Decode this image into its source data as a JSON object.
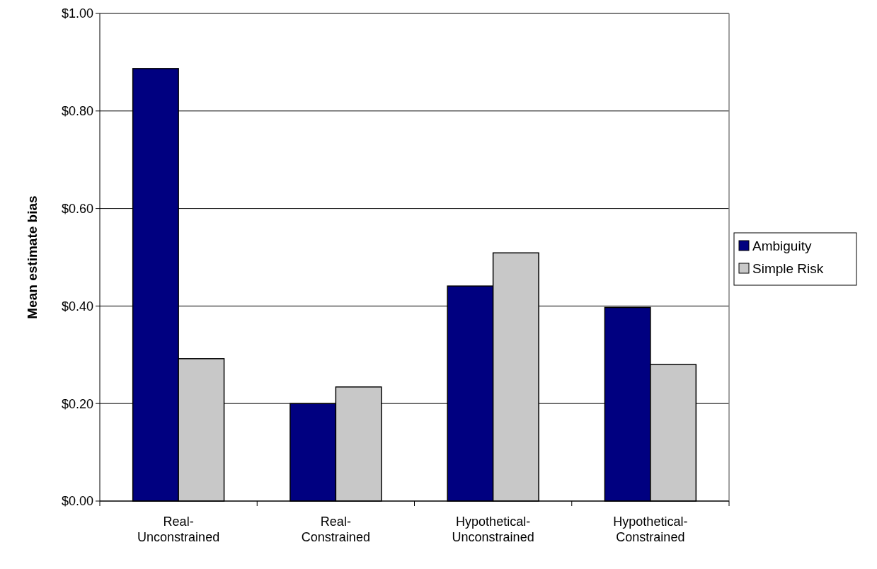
{
  "chart_data": {
    "type": "bar",
    "ylabel": "Mean estimate bias",
    "categories": [
      "Real-\nUnconstrained",
      "Real-\nConstrained",
      "Hypothetical-\nUnconstrained",
      "Hypothetical-\nConstrained"
    ],
    "series": [
      {
        "name": "Ambiguity",
        "color": "#000080",
        "values": [
          0.887,
          0.2,
          0.441,
          0.397
        ]
      },
      {
        "name": "Simple Risk",
        "color": "#c8c8c8",
        "values": [
          0.292,
          0.234,
          0.509,
          0.28
        ]
      }
    ],
    "ylim": [
      0,
      1
    ],
    "yticks": [
      {
        "value": 0,
        "label": "$0.00"
      },
      {
        "value": 0.2,
        "label": "$0.20"
      },
      {
        "value": 0.4,
        "label": "$0.40"
      },
      {
        "value": 0.6,
        "label": "$0.60"
      },
      {
        "value": 0.8,
        "label": "$0.80"
      },
      {
        "value": 1,
        "label": "$1.00"
      }
    ],
    "grid": "y",
    "legend": "right"
  }
}
